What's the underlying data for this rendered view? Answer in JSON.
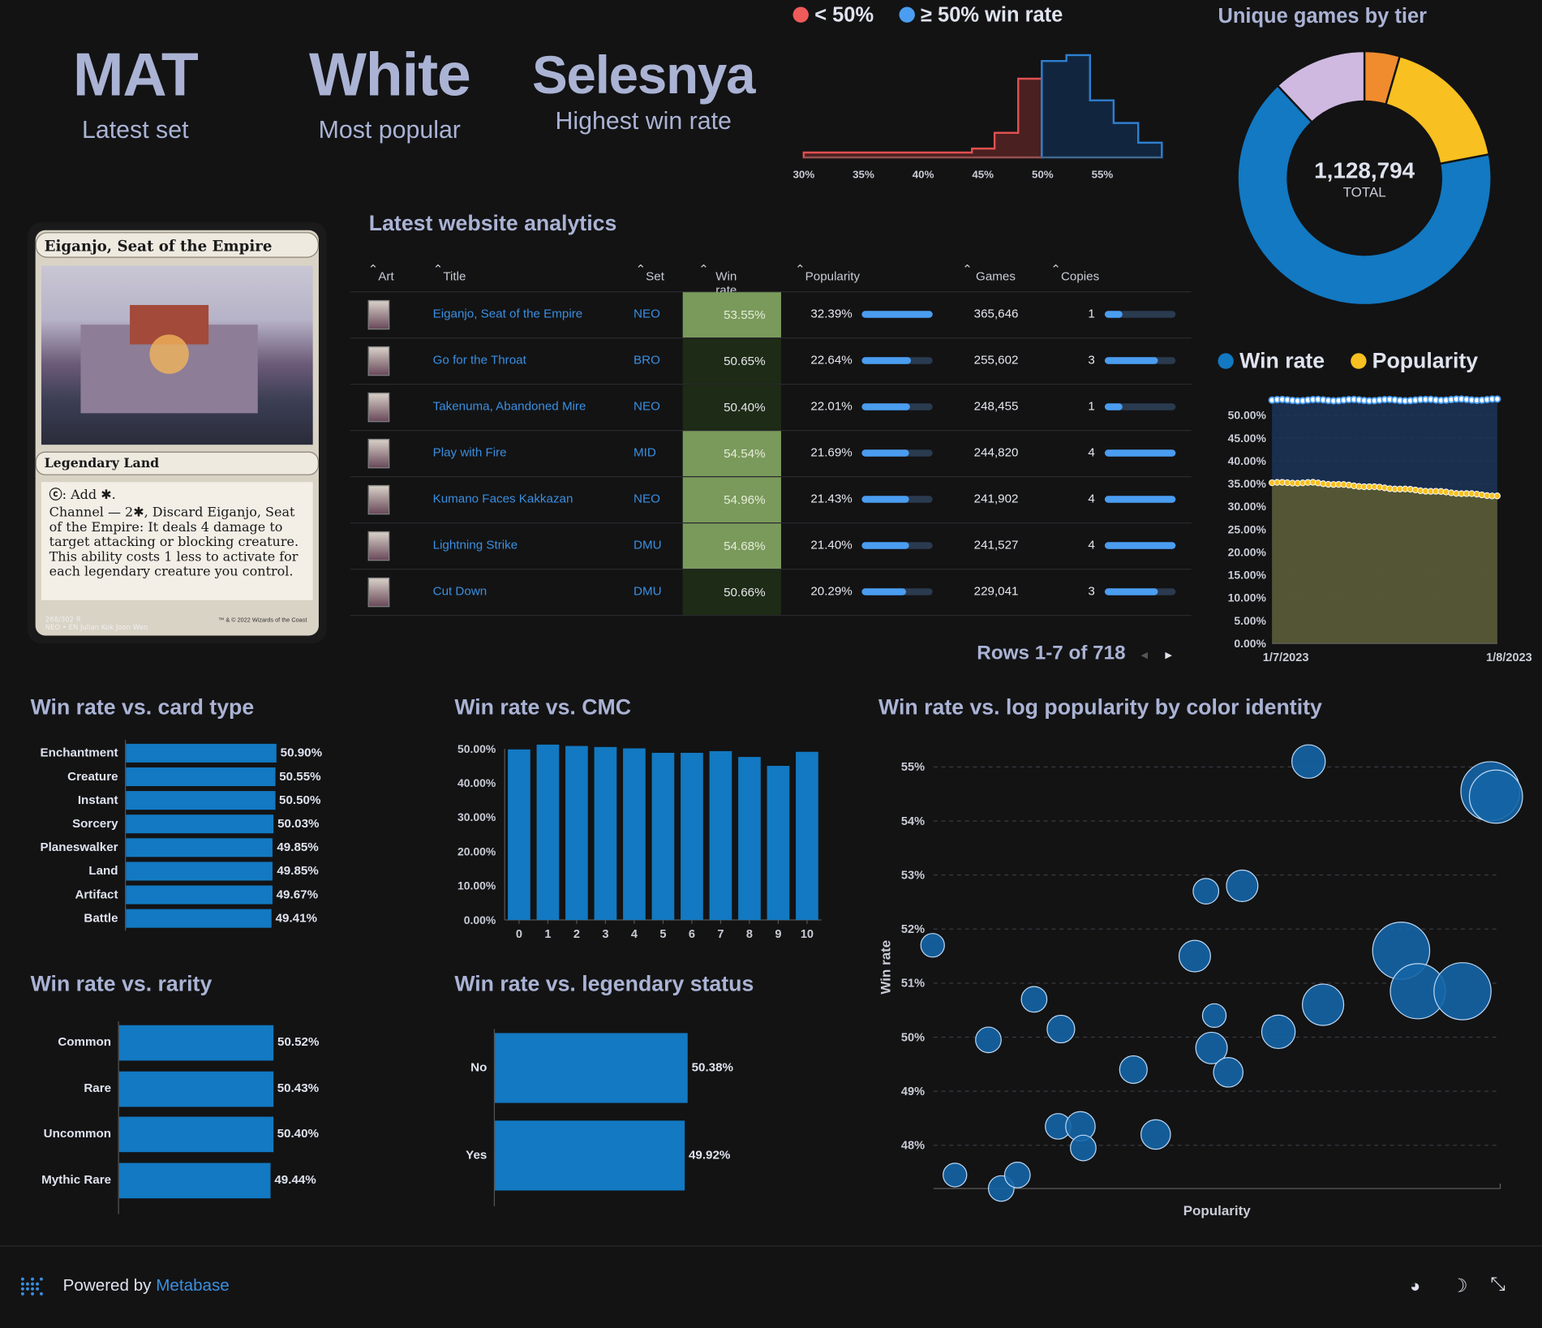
{
  "kpis": [
    {
      "value": "MAT",
      "label": "Latest set"
    },
    {
      "value": "White",
      "label": "Most popular"
    },
    {
      "value": "Selesnya",
      "label": "Highest win rate"
    }
  ],
  "histogram": {
    "legend": [
      {
        "label": "< 50%",
        "color": "#ef5a5a"
      },
      {
        "label": "≥ 50% win rate",
        "color": "#4a9df0"
      }
    ],
    "ticks": [
      "30%",
      "35%",
      "40%",
      "45%",
      "50%",
      "55%"
    ]
  },
  "donut": {
    "title": "Unique games by tier",
    "total_value": "1,128,794",
    "total_label": "TOTAL",
    "segments": [
      {
        "color": "#1279c2",
        "fraction": 0.66
      },
      {
        "color": "#cfb9e0",
        "fraction": 0.12
      },
      {
        "color": "#f08c2e",
        "fraction": 0.045
      },
      {
        "color": "#f8c020",
        "fraction": 0.175
      }
    ]
  },
  "card": {
    "name": "Eiganjo, Seat of the Empire",
    "type_line": "Legendary Land",
    "rules_1": ": Add ✱.",
    "rules_2": "Channel — 2✱, Discard Eiganjo, Seat of the Empire: It deals 4 damage to target attacking or blocking creature. This ability costs 1 less to activate for each legendary creature you control.",
    "collector": "268/302 R",
    "set_line": "NEO • EN  Julian Kok Joon Wen",
    "copyright": "™ & © 2022 Wizards of the Coast"
  },
  "analytics": {
    "title": "Latest website analytics",
    "columns": {
      "art": "Art",
      "title": "Title",
      "set": "Set",
      "win_rate": "Win rate",
      "popularity": "Popularity",
      "games": "Games",
      "copies": "Copies"
    },
    "rows": [
      {
        "title": "Eiganjo, Seat of the Empire",
        "set": "NEO",
        "win_rate": "53.55%",
        "popularity": "32.39%",
        "pop_frac": 1.0,
        "games": "365,646",
        "copies": "1",
        "copies_frac": 0.25,
        "high": true
      },
      {
        "title": "Go for the Throat",
        "set": "BRO",
        "win_rate": "50.65%",
        "popularity": "22.64%",
        "pop_frac": 0.7,
        "games": "255,602",
        "copies": "3",
        "copies_frac": 0.75,
        "high": false
      },
      {
        "title": "Takenuma, Abandoned Mire",
        "set": "NEO",
        "win_rate": "50.40%",
        "popularity": "22.01%",
        "pop_frac": 0.68,
        "games": "248,455",
        "copies": "1",
        "copies_frac": 0.25,
        "high": false
      },
      {
        "title": "Play with Fire",
        "set": "MID",
        "win_rate": "54.54%",
        "popularity": "21.69%",
        "pop_frac": 0.67,
        "games": "244,820",
        "copies": "4",
        "copies_frac": 1.0,
        "high": true
      },
      {
        "title": "Kumano Faces Kakkazan",
        "set": "NEO",
        "win_rate": "54.96%",
        "popularity": "21.43%",
        "pop_frac": 0.66,
        "games": "241,902",
        "copies": "4",
        "copies_frac": 1.0,
        "high": true
      },
      {
        "title": "Lightning Strike",
        "set": "DMU",
        "win_rate": "54.68%",
        "popularity": "21.40%",
        "pop_frac": 0.66,
        "games": "241,527",
        "copies": "4",
        "copies_frac": 1.0,
        "high": true
      },
      {
        "title": "Cut Down",
        "set": "DMU",
        "win_rate": "50.66%",
        "popularity": "20.29%",
        "pop_frac": 0.63,
        "games": "229,041",
        "copies": "3",
        "copies_frac": 0.75,
        "high": false
      }
    ],
    "pager": "Rows 1-7 of 718"
  },
  "trend": {
    "legend": [
      {
        "label": "Win rate",
        "color": "#1279c2"
      },
      {
        "label": "Popularity",
        "color": "#f8c020"
      }
    ],
    "y_ticks": [
      "50.00%",
      "45.00%",
      "40.00%",
      "35.00%",
      "30.00%",
      "25.00%",
      "20.00%",
      "15.00%",
      "10.00%",
      "5.00%",
      "0.00%"
    ],
    "x_ticks": [
      "1/7/2023",
      "1/8/2023"
    ]
  },
  "chart_data": [
    {
      "type": "bar",
      "title": "Win rate vs. card type",
      "categories": [
        "Enchantment",
        "Creature",
        "Instant",
        "Sorcery",
        "Planeswalker",
        "Land",
        "Artifact",
        "Battle"
      ],
      "values": [
        50.9,
        50.55,
        50.5,
        50.03,
        49.85,
        49.85,
        49.67,
        49.41
      ],
      "labels": [
        "50.90%",
        "50.55%",
        "50.50%",
        "50.03%",
        "49.85%",
        "49.85%",
        "49.67%",
        "49.41%"
      ]
    },
    {
      "type": "bar",
      "title": "Win rate vs. CMC",
      "categories": [
        "0",
        "1",
        "2",
        "3",
        "4",
        "5",
        "6",
        "7",
        "8",
        "9",
        "10"
      ],
      "values": [
        49.8,
        51.2,
        50.8,
        50.5,
        50.1,
        48.8,
        48.8,
        49.3,
        47.6,
        45.0,
        49.1
      ],
      "y_ticks": [
        "50.00%",
        "40.00%",
        "30.00%",
        "20.00%",
        "10.00%",
        "0.00%"
      ],
      "ylim": [
        0,
        50
      ]
    },
    {
      "type": "bar",
      "title": "Win rate vs. rarity",
      "categories": [
        "Common",
        "Rare",
        "Uncommon",
        "Mythic Rare"
      ],
      "values": [
        50.52,
        50.43,
        50.4,
        49.44
      ],
      "labels": [
        "50.52%",
        "50.43%",
        "50.40%",
        "49.44%"
      ]
    },
    {
      "type": "bar",
      "title": "Win rate vs. legendary status",
      "categories": [
        "No",
        "Yes"
      ],
      "values": [
        50.38,
        49.92
      ],
      "labels": [
        "50.38%",
        "49.92%"
      ]
    },
    {
      "type": "scatter",
      "title": "Win rate vs. log popularity by color identity",
      "xlabel": "Popularity",
      "ylabel": "Win rate",
      "y_ticks": [
        "55%",
        "54%",
        "53%",
        "52%",
        "51%",
        "50%",
        "49%",
        "48%"
      ],
      "ylim": [
        47.2,
        55.3
      ],
      "points": [
        {
          "x": 0.0,
          "y": 51.7,
          "r": 12
        },
        {
          "x": 0.04,
          "y": 47.45,
          "r": 12
        },
        {
          "x": 0.1,
          "y": 49.95,
          "r": 13
        },
        {
          "x": 0.123,
          "y": 47.2,
          "r": 13
        },
        {
          "x": 0.152,
          "y": 47.45,
          "r": 13
        },
        {
          "x": 0.182,
          "y": 50.7,
          "r": 13
        },
        {
          "x": 0.225,
          "y": 48.35,
          "r": 13
        },
        {
          "x": 0.23,
          "y": 50.15,
          "r": 14
        },
        {
          "x": 0.265,
          "y": 48.35,
          "r": 15
        },
        {
          "x": 0.27,
          "y": 47.95,
          "r": 13
        },
        {
          "x": 0.36,
          "y": 49.4,
          "r": 14
        },
        {
          "x": 0.4,
          "y": 48.2,
          "r": 15
        },
        {
          "x": 0.47,
          "y": 51.5,
          "r": 16
        },
        {
          "x": 0.49,
          "y": 52.7,
          "r": 13
        },
        {
          "x": 0.5,
          "y": 49.8,
          "r": 16
        },
        {
          "x": 0.505,
          "y": 50.4,
          "r": 12
        },
        {
          "x": 0.53,
          "y": 49.35,
          "r": 15
        },
        {
          "x": 0.555,
          "y": 52.8,
          "r": 16
        },
        {
          "x": 0.62,
          "y": 50.1,
          "r": 17
        },
        {
          "x": 0.674,
          "y": 55.1,
          "r": 17
        },
        {
          "x": 0.7,
          "y": 50.6,
          "r": 21
        },
        {
          "x": 0.84,
          "y": 51.6,
          "r": 29
        },
        {
          "x": 0.87,
          "y": 50.85,
          "r": 28
        },
        {
          "x": 0.95,
          "y": 50.85,
          "r": 29
        },
        {
          "x": 1.0,
          "y": 54.55,
          "r": 30
        },
        {
          "x": 1.01,
          "y": 54.45,
          "r": 27
        }
      ]
    }
  ],
  "footer": {
    "powered_by": "Powered by ",
    "brand": "Metabase"
  }
}
